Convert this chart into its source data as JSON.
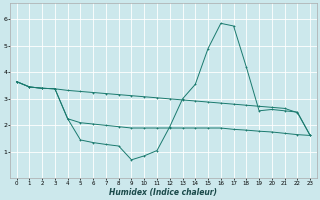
{
  "background_color": "#cce8ec",
  "grid_color": "#ffffff",
  "line_color": "#1a7a6e",
  "xlabel": "Humidex (Indice chaleur)",
  "xlim": [
    -0.5,
    23.5
  ],
  "ylim": [
    0,
    6.6
  ],
  "xticks": [
    0,
    1,
    2,
    3,
    4,
    5,
    6,
    7,
    8,
    9,
    10,
    11,
    12,
    13,
    14,
    15,
    16,
    17,
    18,
    19,
    20,
    21,
    22,
    23
  ],
  "yticks": [
    1,
    2,
    3,
    4,
    5,
    6
  ],
  "series1_x": [
    0,
    1,
    2,
    3,
    4,
    5,
    6,
    7,
    8,
    9,
    10,
    11,
    12,
    13,
    14,
    15,
    16,
    17,
    18,
    19,
    20,
    21,
    22,
    23
  ],
  "series1_y": [
    3.65,
    3.45,
    3.4,
    3.38,
    3.32,
    3.28,
    3.24,
    3.2,
    3.16,
    3.12,
    3.08,
    3.04,
    3.0,
    2.96,
    2.92,
    2.88,
    2.84,
    2.8,
    2.76,
    2.72,
    2.68,
    2.64,
    2.48,
    1.62
  ],
  "series2_x": [
    0,
    1,
    2,
    3,
    4,
    5,
    6,
    7,
    8,
    9,
    10,
    11,
    12,
    13,
    14,
    15,
    16,
    17,
    18,
    19,
    20,
    21,
    22,
    23
  ],
  "series2_y": [
    3.65,
    3.45,
    3.4,
    3.38,
    2.25,
    2.1,
    2.05,
    2.0,
    1.95,
    1.9,
    1.9,
    1.9,
    1.9,
    1.9,
    1.9,
    1.9,
    1.9,
    1.85,
    1.82,
    1.78,
    1.75,
    1.7,
    1.65,
    1.62
  ],
  "series3_x": [
    0,
    1,
    2,
    3,
    4,
    5,
    6,
    7,
    8,
    9,
    10,
    11,
    12,
    13,
    14,
    15,
    16,
    17,
    18,
    19,
    20,
    21,
    22,
    23
  ],
  "series3_y": [
    3.65,
    3.45,
    3.4,
    3.38,
    2.25,
    1.45,
    1.35,
    1.28,
    1.22,
    0.7,
    0.85,
    1.05,
    1.95,
    3.0,
    3.55,
    4.9,
    5.85,
    5.75,
    4.2,
    2.55,
    2.6,
    2.55,
    2.5,
    1.62
  ]
}
